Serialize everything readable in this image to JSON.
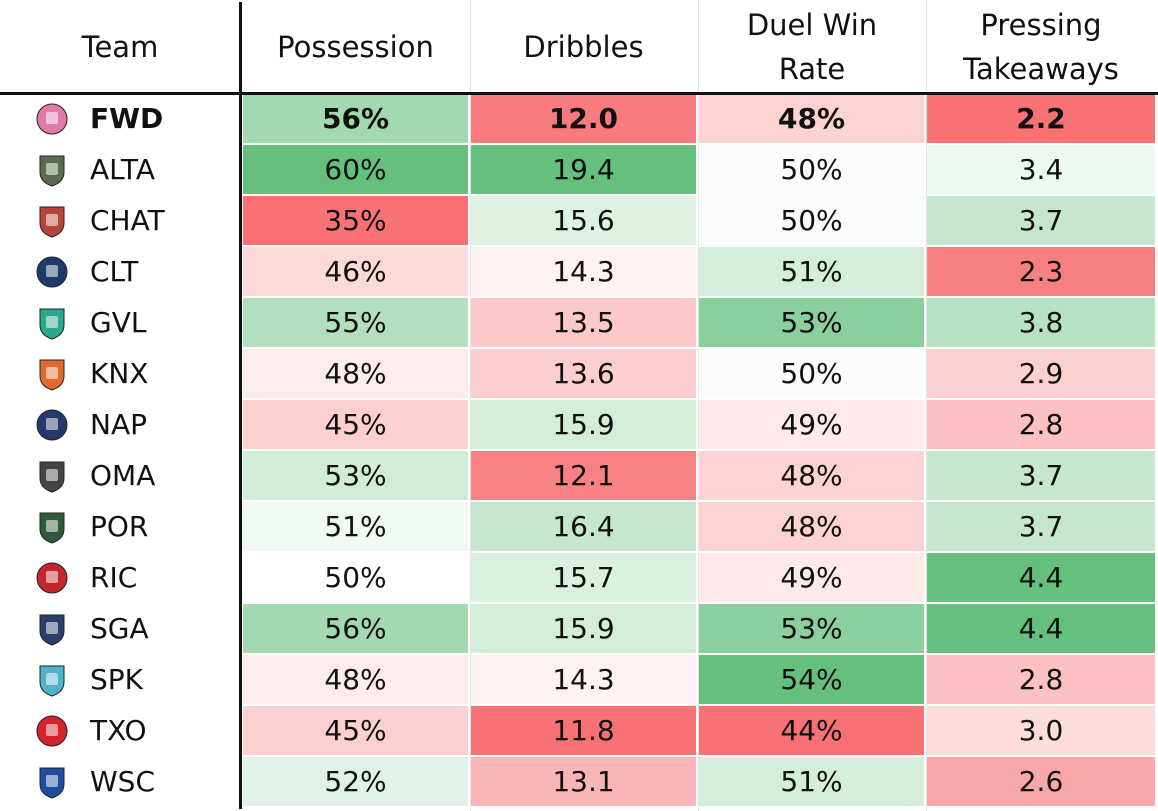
{
  "chart_data": {
    "type": "table",
    "columns": [
      "Team",
      "Possession",
      "Dribbles",
      "Duel Win Rate",
      "Pressing Takeaways"
    ],
    "rows": [
      {
        "team": "FWD",
        "logo": "fwd-logo-icon",
        "possession": "56%",
        "dribbles": "12.0",
        "duel": "48%",
        "pressing": "2.2",
        "highlight": true
      },
      {
        "team": "ALTA",
        "logo": "alta-logo-icon",
        "possession": "60%",
        "dribbles": "19.4",
        "duel": "50%",
        "pressing": "3.4"
      },
      {
        "team": "CHAT",
        "logo": "chat-logo-icon",
        "possession": "35%",
        "dribbles": "15.6",
        "duel": "50%",
        "pressing": "3.7"
      },
      {
        "team": "CLT",
        "logo": "clt-logo-icon",
        "possession": "46%",
        "dribbles": "14.3",
        "duel": "51%",
        "pressing": "2.3"
      },
      {
        "team": "GVL",
        "logo": "gvl-logo-icon",
        "possession": "55%",
        "dribbles": "13.5",
        "duel": "53%",
        "pressing": "3.8"
      },
      {
        "team": "KNX",
        "logo": "knx-logo-icon",
        "possession": "48%",
        "dribbles": "13.6",
        "duel": "50%",
        "pressing": "2.9"
      },
      {
        "team": "NAP",
        "logo": "nap-logo-icon",
        "possession": "45%",
        "dribbles": "15.9",
        "duel": "49%",
        "pressing": "2.8"
      },
      {
        "team": "OMA",
        "logo": "oma-logo-icon",
        "possession": "53%",
        "dribbles": "12.1",
        "duel": "48%",
        "pressing": "3.7"
      },
      {
        "team": "POR",
        "logo": "por-logo-icon",
        "possession": "51%",
        "dribbles": "16.4",
        "duel": "48%",
        "pressing": "3.7"
      },
      {
        "team": "RIC",
        "logo": "ric-logo-icon",
        "possession": "50%",
        "dribbles": "15.7",
        "duel": "49%",
        "pressing": "4.4"
      },
      {
        "team": "SGA",
        "logo": "sga-logo-icon",
        "possession": "56%",
        "dribbles": "15.9",
        "duel": "53%",
        "pressing": "4.4"
      },
      {
        "team": "SPK",
        "logo": "spk-logo-icon",
        "possession": "48%",
        "dribbles": "14.3",
        "duel": "54%",
        "pressing": "2.8"
      },
      {
        "team": "TXO",
        "logo": "txo-logo-icon",
        "possession": "45%",
        "dribbles": "11.8",
        "duel": "44%",
        "pressing": "3.0"
      },
      {
        "team": "WSC",
        "logo": "wsc-logo-icon",
        "possession": "52%",
        "dribbles": "13.1",
        "duel": "51%",
        "pressing": "2.6"
      }
    ],
    "color_scale": {
      "low": "#f76a6e",
      "mid": "#ffffff",
      "high": "#5dbd77"
    }
  }
}
